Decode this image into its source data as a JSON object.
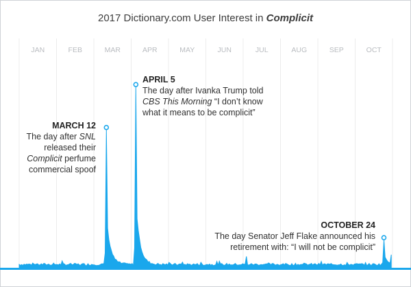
{
  "chart_data": {
    "type": "area",
    "title_prefix": "2017 Dictionary.com User Interest in ",
    "title_emphasis": "Complicit",
    "months": [
      "JAN",
      "FEB",
      "MAR",
      "APR",
      "MAY",
      "JUN",
      "JUL",
      "AUG",
      "SEP",
      "OCT"
    ],
    "x_unit": "day of year",
    "ylim": [
      0,
      100
    ],
    "grid": true,
    "color": "#1aa7ec",
    "spikes": [
      {
        "day": 71,
        "value": 74
      },
      {
        "day": 95,
        "value": 97
      },
      {
        "day": 297,
        "value": 15
      }
    ],
    "annotations": [
      {
        "id": "mar",
        "date": "MARCH 12",
        "day": 71,
        "lines": [
          [
            {
              "t": "The day after "
            },
            {
              "t": "SNL",
              "i": true
            }
          ],
          [
            {
              "t": "released their"
            }
          ],
          [
            {
              "t": "Complicit",
              "i": true
            },
            {
              "t": " perfume"
            }
          ],
          [
            {
              "t": "commercial spoof"
            }
          ]
        ]
      },
      {
        "id": "apr",
        "date": "APRIL 5",
        "day": 95,
        "lines": [
          [
            {
              "t": "The day after Ivanka Trump told"
            }
          ],
          [
            {
              "t": "CBS This Morning",
              "i": true
            },
            {
              "t": " “I don’t know"
            }
          ],
          [
            {
              "t": "what it means to be complicit”"
            }
          ]
        ]
      },
      {
        "id": "oct",
        "date": "OCTOBER 24",
        "day": 297,
        "lines": [
          [
            {
              "t": "The day Senator Jeff Flake announced his"
            }
          ],
          [
            {
              "t": "retirement with: “I will not be complicit”"
            }
          ]
        ]
      }
    ]
  }
}
